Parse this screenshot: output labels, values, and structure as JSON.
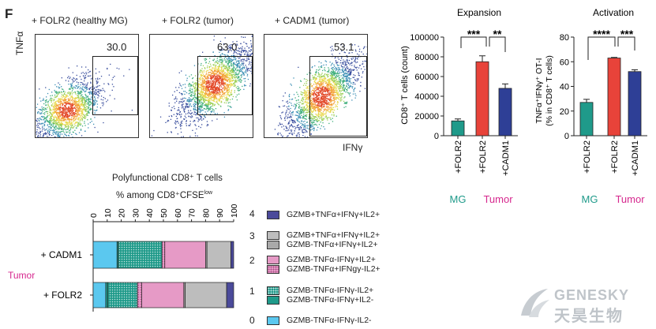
{
  "panel_letter": "F",
  "flow": {
    "y_axis_label": "TNFα",
    "x_axis_label": "IFNγ",
    "panels": [
      {
        "title": "+ FOLR2 (healthy MG)",
        "gate_value": "30.0"
      },
      {
        "title": "+ FOLR2 (tumor)",
        "gate_value": "63.0"
      },
      {
        "title": "+ CADM1 (tumor)",
        "gate_value": "53.1"
      }
    ]
  },
  "expansion": {
    "title": "Expansion",
    "ylabel": "CD8⁺ T cells (count)",
    "sig": [
      "***",
      "**"
    ]
  },
  "activation": {
    "title": "Activation",
    "ylabel_line1": "TNFα⁺IFNγ⁺ OT-I",
    "ylabel_line2": "(% in CD8⁺ T cells)",
    "sig": [
      "****",
      "***"
    ]
  },
  "group_labels": {
    "mg": "MG",
    "tumor": "Tumor"
  },
  "polyfunctional": {
    "title_line1": "Polyfunctional CD8⁺ T cells",
    "title_line2": "% among CD8⁺CFSE",
    "title_sup": "low",
    "tumor_label": "Tumor"
  },
  "legend": [
    {
      "num": "4",
      "entries": [
        {
          "label": "GZMB+TNFα+IFNγ+IL2+",
          "color": "#4b4a9a",
          "pattern": false
        }
      ]
    },
    {
      "num": "3",
      "entries": [
        {
          "label": "GZMB+TNFα+IFNγ+IL2+",
          "color": "#bdbdbd",
          "pattern": false
        },
        {
          "label": "GZMB-TNFα+IFNγ+IL2+",
          "color": "#a9a9a9",
          "pattern": false
        }
      ]
    },
    {
      "num": "2",
      "entries": [
        {
          "label": "GZMB-TNFα-IFNγ+IL2+",
          "color": "#e69ac6",
          "pattern": false
        },
        {
          "label": "GZMB-TNFα+IFNgγ-IL2+",
          "color": "#e69ac6",
          "pattern": true
        }
      ]
    },
    {
      "num": "1",
      "entries": [
        {
          "label": "GZMB-TNFα-IFNγ-IL2+",
          "color": "#1f9a8a",
          "pattern": true
        },
        {
          "label": "GZMB-TNFα-IFNγ+IL2-",
          "color": "#1f9a8a",
          "pattern": false
        }
      ]
    },
    {
      "num": "0",
      "entries": [
        {
          "label": "GZMB-TNFα-IFNγ-IL2-",
          "color": "#5bc8ef",
          "pattern": false
        }
      ]
    }
  ],
  "watermark": {
    "en": "GENESKY",
    "cn": "天昊生物"
  },
  "chart_data": [
    {
      "type": "bar",
      "title": "Expansion",
      "ylabel": "CD8⁺ T cells (count)",
      "categories": [
        "+FOLR2",
        "+FOLR2",
        "+CADM1"
      ],
      "values": [
        15000,
        75000,
        48000
      ],
      "errors": [
        2000,
        6000,
        4500
      ],
      "colors": [
        "#1f9a8a",
        "#e8433a",
        "#2e3f96"
      ],
      "ylim": [
        0,
        100000
      ],
      "yticks": [
        "0",
        "20000",
        "40000",
        "60000",
        "80000",
        "100000"
      ],
      "ytick_values": [
        0,
        20000,
        40000,
        60000,
        80000,
        100000
      ]
    },
    {
      "type": "bar",
      "title": "Activation",
      "ylabel": "TNFα⁺IFNγ⁺ OT-I (% in CD8⁺ T cells)",
      "categories": [
        "+FOLR2",
        "+FOLR2",
        "+CADM1"
      ],
      "values": [
        27,
        63,
        52
      ],
      "errors": [
        2.5,
        0.5,
        1.5
      ],
      "colors": [
        "#1f9a8a",
        "#e8433a",
        "#2e3f96"
      ],
      "ylim": [
        0,
        80
      ],
      "yticks": [
        "0",
        "20",
        "40",
        "60",
        "80"
      ],
      "ytick_values": [
        0,
        20,
        40,
        60,
        80
      ]
    },
    {
      "type": "bar",
      "title": "Polyfunctional CD8⁺ T cells",
      "orientation": "horizontal-stacked",
      "categories": [
        "+ CADM1",
        "+ FOLR2"
      ],
      "xticks": [
        "0",
        "10",
        "20",
        "30",
        "40",
        "50",
        "60",
        "70",
        "80",
        "90",
        "100"
      ],
      "xlim": [
        0,
        100
      ],
      "series": [
        {
          "name": "GZMB-TNFα-IFNγ-IL2-",
          "color": "#5bc8ef",
          "pattern": false,
          "values": [
            17,
            9
          ]
        },
        {
          "name": "GZMB-TNFα-IFNγ+IL2-",
          "color": "#1f9a8a",
          "pattern": false,
          "values": [
            1,
            1.5
          ]
        },
        {
          "name": "GZMB-TNFα-IFNγ-IL2+",
          "color": "#1f9a8a",
          "pattern": true,
          "values": [
            31,
            21
          ]
        },
        {
          "name": "GZMB-TNFα+IFNgγ-IL2+",
          "color": "#e69ac6",
          "pattern": true,
          "values": [
            2,
            3
          ]
        },
        {
          "name": "GZMB-TNFα-IFNγ+IL2+",
          "color": "#e69ac6",
          "pattern": false,
          "values": [
            29,
            30
          ]
        },
        {
          "name": "GZMB-TNFα+IFNγ+IL2+",
          "color": "#a9a9a9",
          "pattern": false,
          "values": [
            1,
            1
          ]
        },
        {
          "name": "GZMB+TNFα+IFNγ+IL2+",
          "color": "#bdbdbd",
          "pattern": false,
          "values": [
            17,
            29.5
          ]
        },
        {
          "name": "GZMB+TNFα+IFNγ+IL2+",
          "color": "#4b4a9a",
          "pattern": false,
          "values": [
            2,
            5
          ]
        }
      ]
    }
  ]
}
